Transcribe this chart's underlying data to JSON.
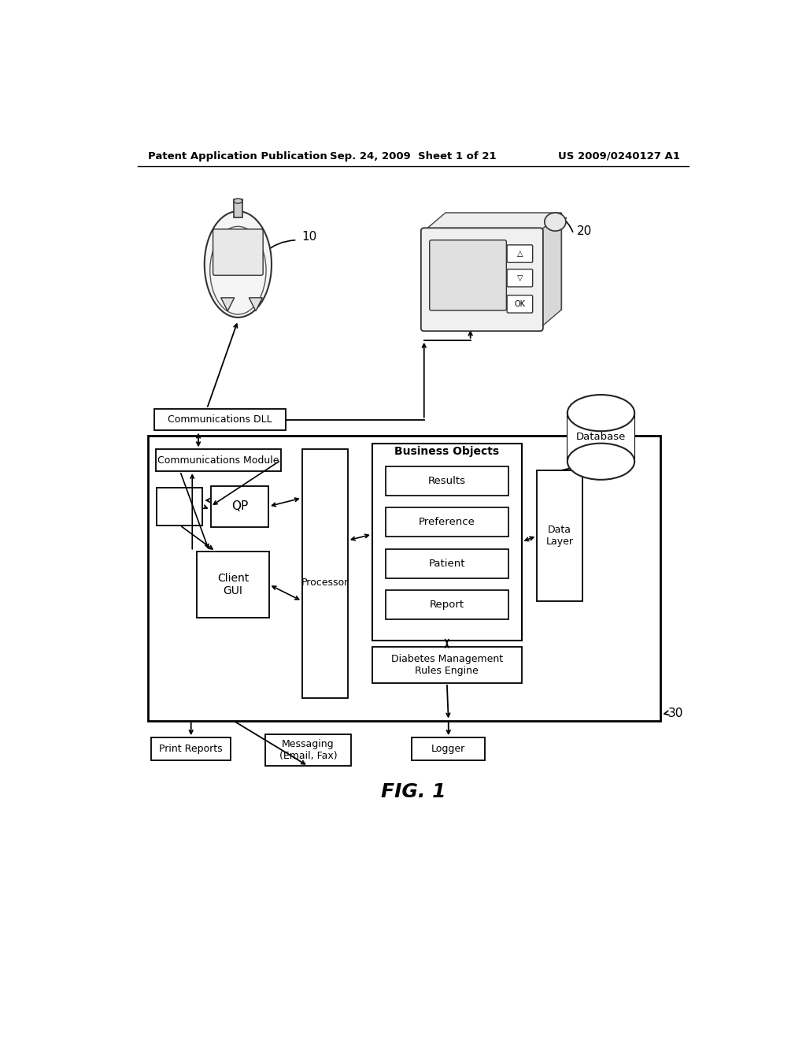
{
  "bg_color": "#ffffff",
  "header_left": "Patent Application Publication",
  "header_mid": "Sep. 24, 2009  Sheet 1 of 21",
  "header_right": "US 2009/0240127 A1",
  "figure_label": "FIG. 1",
  "label_10": "10",
  "label_20": "20",
  "label_30": "30",
  "boxes": {
    "comm_dll": "Communications DLL",
    "comm_module": "Communications Module",
    "qp": "QP",
    "processor": "Processor",
    "client_gui": "Client\nGUI",
    "business_objects_title": "Business Objects",
    "results": "Results",
    "preference": "Preference",
    "patient": "Patient",
    "report": "Report",
    "dm_rules": "Diabetes Management\nRules Engine",
    "data_layer": "Data\nLayer",
    "database": "Database",
    "print_reports": "Print Reports",
    "messaging": "Messaging\n(Email, Fax)",
    "logger": "Logger"
  }
}
